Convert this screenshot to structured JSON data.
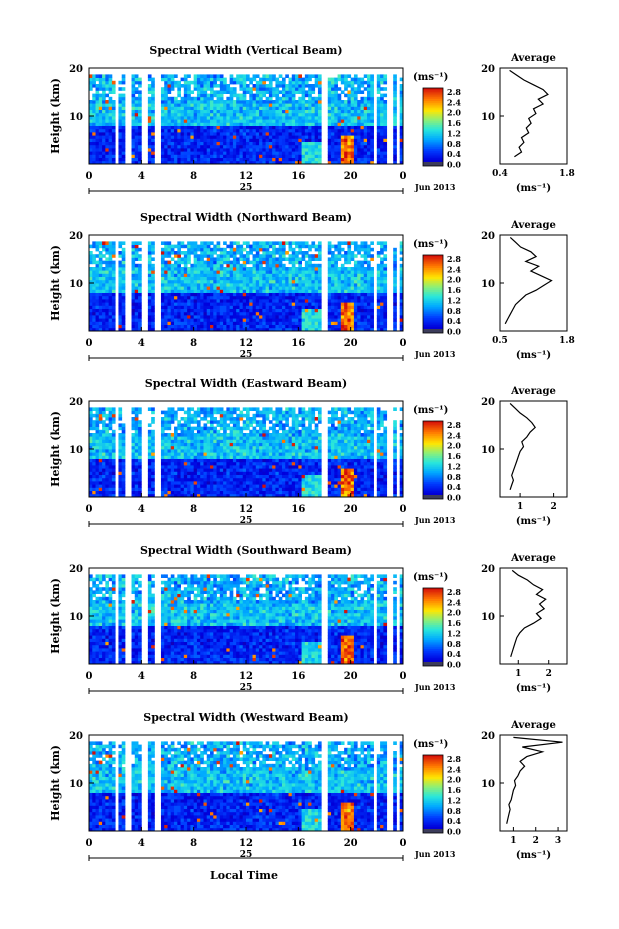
{
  "chart_data": [
    {
      "type": "heatmap",
      "title": "Spectral Width (Vertical Beam)",
      "ylabel": "Height (km)",
      "ylim": [
        0,
        20
      ],
      "yticks": [
        10,
        20
      ],
      "xticks": [
        "0",
        "4",
        "8",
        "12",
        "16",
        "20",
        "0"
      ],
      "date_label": "25",
      "month_label": "Jun 2013",
      "colorbar": {
        "unit": "(ms⁻¹)",
        "ticks": [
          "2.8",
          "2.4",
          "2.0",
          "1.6",
          "1.2",
          "0.8",
          "0.4",
          "0.0"
        ],
        "range": [
          0,
          3.0
        ]
      },
      "profile": {
        "title": "Average",
        "unit": "(ms⁻¹)",
        "xticks": [
          "0.4",
          "1.8"
        ],
        "xlim": [
          0.4,
          1.8
        ],
        "ylim": [
          0,
          20
        ],
        "yticks": [
          10,
          20
        ],
        "heights": [
          1.5,
          2.5,
          3.5,
          4.5,
          5.5,
          6.5,
          7.5,
          8.5,
          9.5,
          10.5,
          11.5,
          12.5,
          13.5,
          14.5,
          15.5,
          16.5,
          17.5,
          18.5,
          19.5
        ],
        "values": [
          0.7,
          0.85,
          0.8,
          0.9,
          0.85,
          1.0,
          0.95,
          1.05,
          1.0,
          1.15,
          1.1,
          1.3,
          1.2,
          1.4,
          1.3,
          1.1,
          0.9,
          0.75,
          0.6
        ]
      }
    },
    {
      "type": "heatmap",
      "title": "Spectral Width (Northward Beam)",
      "ylabel": "Height (km)",
      "ylim": [
        0,
        20
      ],
      "yticks": [
        10,
        20
      ],
      "xticks": [
        "0",
        "4",
        "8",
        "12",
        "16",
        "20",
        "0"
      ],
      "date_label": "25",
      "month_label": "Jun 2013",
      "colorbar": {
        "unit": "(ms⁻¹)",
        "ticks": [
          "2.8",
          "2.4",
          "2.0",
          "1.6",
          "1.2",
          "0.8",
          "0.4",
          "0.0"
        ],
        "range": [
          0,
          3.0
        ]
      },
      "profile": {
        "title": "Average",
        "unit": "(ms⁻¹)",
        "xticks": [
          "0.5",
          "1.8"
        ],
        "xlim": [
          0.5,
          1.8
        ],
        "ylim": [
          0,
          20
        ],
        "yticks": [
          10,
          20
        ],
        "heights": [
          1.5,
          2.5,
          3.5,
          4.5,
          5.5,
          6.5,
          7.5,
          8.5,
          9.5,
          10.5,
          11.5,
          12.5,
          13.5,
          14.5,
          15.5,
          16.5,
          17.5,
          18.5,
          19.5
        ],
        "values": [
          0.6,
          0.65,
          0.7,
          0.75,
          0.8,
          0.9,
          1.0,
          1.2,
          1.35,
          1.5,
          1.3,
          1.1,
          1.25,
          1.0,
          1.2,
          1.1,
          0.9,
          0.8,
          0.7
        ]
      }
    },
    {
      "type": "heatmap",
      "title": "Spectral Width (Eastward Beam)",
      "ylabel": "Height (km)",
      "ylim": [
        0,
        20
      ],
      "yticks": [
        10,
        20
      ],
      "xticks": [
        "0",
        "4",
        "8",
        "12",
        "16",
        "20",
        "0"
      ],
      "date_label": "25",
      "month_label": "Jun 2013",
      "colorbar": {
        "unit": "(ms⁻¹)",
        "ticks": [
          "2.8",
          "2.4",
          "2.0",
          "1.6",
          "1.2",
          "0.8",
          "0.4",
          "0.0"
        ],
        "range": [
          0,
          3.0
        ]
      },
      "profile": {
        "title": "Average",
        "unit": "(ms⁻¹)",
        "xticks": [
          "1",
          "2"
        ],
        "xlim": [
          0.4,
          2.4
        ],
        "ylim": [
          0,
          20
        ],
        "yticks": [
          10,
          20
        ],
        "heights": [
          1.5,
          2.5,
          3.5,
          4.5,
          5.5,
          6.5,
          7.5,
          8.5,
          9.5,
          10.5,
          11.5,
          12.5,
          13.5,
          14.5,
          15.5,
          16.5,
          17.5,
          18.5,
          19.5
        ],
        "values": [
          0.7,
          0.75,
          0.8,
          0.75,
          0.8,
          0.85,
          0.9,
          0.95,
          1.0,
          1.1,
          1.05,
          1.2,
          1.3,
          1.45,
          1.35,
          1.2,
          1.0,
          0.85,
          0.7
        ]
      }
    },
    {
      "type": "heatmap",
      "title": "Spectral Width (Southward Beam)",
      "ylabel": "Height (km)",
      "ylim": [
        0,
        20
      ],
      "yticks": [
        10,
        20
      ],
      "xticks": [
        "0",
        "4",
        "8",
        "12",
        "16",
        "20",
        "0"
      ],
      "date_label": "25",
      "month_label": "Jun 2013",
      "colorbar": {
        "unit": "(ms⁻¹)",
        "ticks": [
          "2.8",
          "2.4",
          "2.0",
          "1.6",
          "1.2",
          "0.8",
          "0.4",
          "0.0"
        ],
        "range": [
          0,
          3.0
        ]
      },
      "profile": {
        "title": "Average",
        "unit": "(ms⁻¹)",
        "xticks": [
          "1",
          "2"
        ],
        "xlim": [
          0.4,
          2.6
        ],
        "ylim": [
          0,
          20
        ],
        "yticks": [
          10,
          20
        ],
        "heights": [
          1.5,
          2.5,
          3.5,
          4.5,
          5.5,
          6.5,
          7.5,
          8.5,
          9.5,
          10.5,
          11.5,
          12.5,
          13.5,
          14.5,
          15.5,
          16.5,
          17.5,
          18.5,
          19.5
        ],
        "values": [
          0.75,
          0.8,
          0.85,
          0.9,
          0.95,
          1.05,
          1.2,
          1.5,
          1.75,
          1.6,
          1.85,
          1.7,
          1.9,
          1.6,
          1.8,
          1.5,
          1.3,
          1.0,
          0.8
        ]
      }
    },
    {
      "type": "heatmap",
      "title": "Spectral Width (Westward Beam)",
      "ylabel": "Height (km)",
      "ylim": [
        0,
        20
      ],
      "yticks": [
        10,
        20
      ],
      "xticks": [
        "0",
        "4",
        "8",
        "12",
        "16",
        "20",
        "0"
      ],
      "date_label": "25",
      "month_label": "Jun 2013",
      "colorbar": {
        "unit": "(ms⁻¹)",
        "ticks": [
          "2.8",
          "2.4",
          "2.0",
          "1.6",
          "1.2",
          "0.8",
          "0.4",
          "0.0"
        ],
        "range": [
          0,
          3.0
        ]
      },
      "profile": {
        "title": "Average",
        "unit": "(ms⁻¹)",
        "xticks": [
          "1",
          "2",
          "3"
        ],
        "xlim": [
          0.4,
          3.4
        ],
        "ylim": [
          0,
          20
        ],
        "yticks": [
          10,
          20
        ],
        "heights": [
          1.5,
          2.5,
          3.5,
          4.5,
          5.5,
          6.5,
          7.5,
          8.5,
          9.5,
          10.5,
          11.5,
          12.5,
          13.5,
          14.5,
          15.5,
          16.5,
          17.5,
          18.5,
          19.5
        ],
        "values": [
          0.7,
          0.75,
          0.8,
          0.85,
          0.8,
          0.9,
          0.95,
          1.0,
          1.1,
          1.05,
          1.2,
          1.3,
          1.5,
          1.3,
          1.6,
          2.3,
          1.4,
          3.2,
          1.0
        ]
      }
    }
  ],
  "xaxis_label": "Local Time",
  "colors": {
    "min": "#00008b",
    "low": "#1f3fff",
    "mid": "#26d3e6",
    "high": "#ffd500",
    "max": "#d01010",
    "floor": "#3c3c5a"
  }
}
